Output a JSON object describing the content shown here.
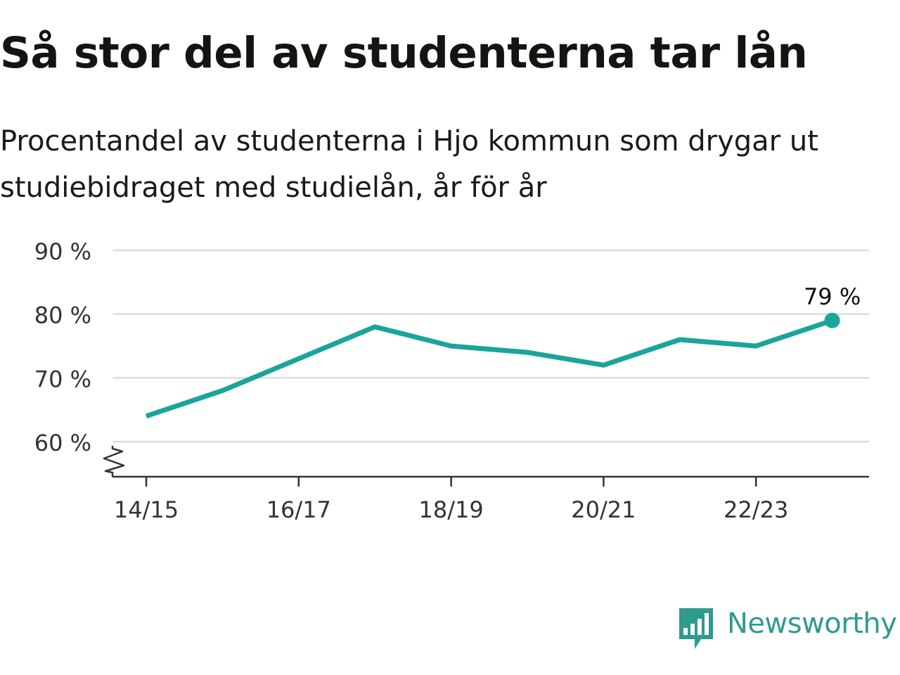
{
  "title": "Så stor del av studenterna tar lån",
  "subtitle": "Procentandel av studenterna i Hjo kommun som drygar ut studiebidraget med studielån, år för år",
  "brand": {
    "name": "Newsworthy",
    "color": "#2f9b8c",
    "icon": "newsworthy-logo-icon"
  },
  "colors": {
    "line": "#1aa59a",
    "grid": "#dddddd",
    "axis": "#333333",
    "text": "#333333"
  },
  "chart_data": {
    "type": "line",
    "title": "Så stor del av studenterna tar lån",
    "subtitle": "Procentandel av studenterna i Hjo kommun som drygar ut studiebidraget med studielån, år för år",
    "categories": [
      "14/15",
      "15/16",
      "16/17",
      "17/18",
      "18/19",
      "19/20",
      "20/21",
      "21/22",
      "22/23",
      "23/24"
    ],
    "x_tick_labels": [
      "14/15",
      "16/17",
      "18/19",
      "20/21",
      "22/23"
    ],
    "series": [
      {
        "values": [
          64,
          68,
          73,
          78,
          75,
          74,
          72,
          76,
          75,
          79
        ]
      }
    ],
    "y_ticks": [
      60,
      70,
      80,
      90
    ],
    "y_tick_labels": [
      "60 %",
      "70 %",
      "80 %",
      "90 %"
    ],
    "ylim": [
      54.5,
      90
    ],
    "axis_break": true,
    "grid": true,
    "last_point_label": "79 %",
    "xlabel": "",
    "ylabel": ""
  }
}
